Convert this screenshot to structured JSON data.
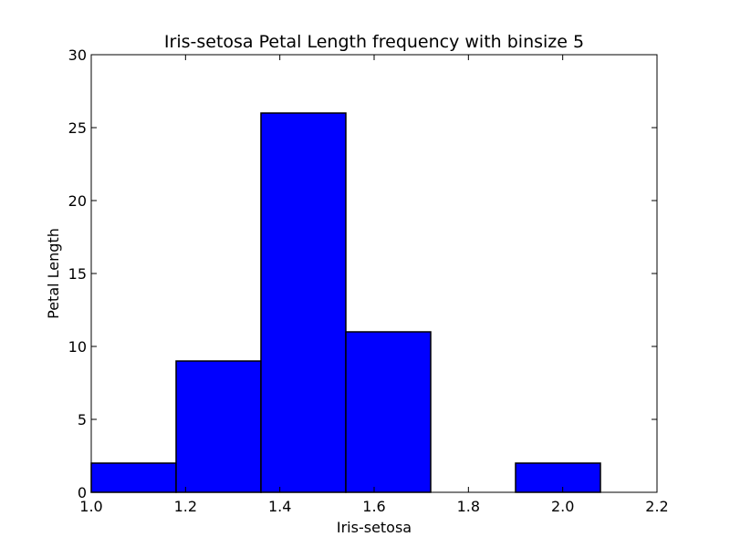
{
  "chart_data": {
    "type": "bar",
    "title": "Iris-setosa Petal Length frequency with binsize 5",
    "xlabel": "Iris-setosa",
    "ylabel": "Petal Length",
    "xlim": [
      1.0,
      2.2
    ],
    "ylim": [
      0,
      30
    ],
    "x_ticks": [
      "1.0",
      "1.2",
      "1.4",
      "1.6",
      "1.8",
      "2.0",
      "2.2"
    ],
    "y_ticks": [
      "0",
      "5",
      "10",
      "15",
      "20",
      "25",
      "30"
    ],
    "bins": [
      {
        "start": 1.0,
        "end": 1.18,
        "value": 2
      },
      {
        "start": 1.18,
        "end": 1.36,
        "value": 9
      },
      {
        "start": 1.36,
        "end": 1.54,
        "value": 26
      },
      {
        "start": 1.54,
        "end": 1.72,
        "value": 11
      },
      {
        "start": 1.72,
        "end": 1.9,
        "value": 0
      },
      {
        "start": 1.9,
        "end": 2.08,
        "value": 2
      }
    ],
    "bar_color": "#0000ff",
    "grid": false,
    "legend": "none"
  }
}
